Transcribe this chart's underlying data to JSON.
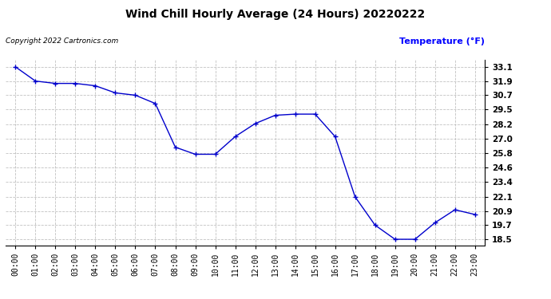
{
  "title": "Wind Chill Hourly Average (24 Hours) 20220222",
  "ylabel": "Temperature (°F)",
  "copyright": "Copyright 2022 Cartronics.com",
  "line_color": "#0000cc",
  "background_color": "#ffffff",
  "grid_color": "#bbbbbb",
  "hours": [
    0,
    1,
    2,
    3,
    4,
    5,
    6,
    7,
    8,
    9,
    10,
    11,
    12,
    13,
    14,
    15,
    16,
    17,
    18,
    19,
    20,
    21,
    22,
    23
  ],
  "temps": [
    33.1,
    31.9,
    31.7,
    31.7,
    31.5,
    30.9,
    30.7,
    30.0,
    26.3,
    25.7,
    25.7,
    27.2,
    28.3,
    29.0,
    29.1,
    29.1,
    27.2,
    22.1,
    19.7,
    18.5,
    18.5,
    19.9,
    21.0,
    20.6
  ],
  "yticks": [
    18.5,
    19.7,
    20.9,
    22.1,
    23.4,
    24.6,
    25.8,
    27.0,
    28.2,
    29.5,
    30.7,
    31.9,
    33.1
  ],
  "ylim": [
    18.0,
    33.7
  ],
  "xlim": [
    -0.5,
    23.5
  ],
  "figsize": [
    6.9,
    3.75
  ],
  "dpi": 100
}
